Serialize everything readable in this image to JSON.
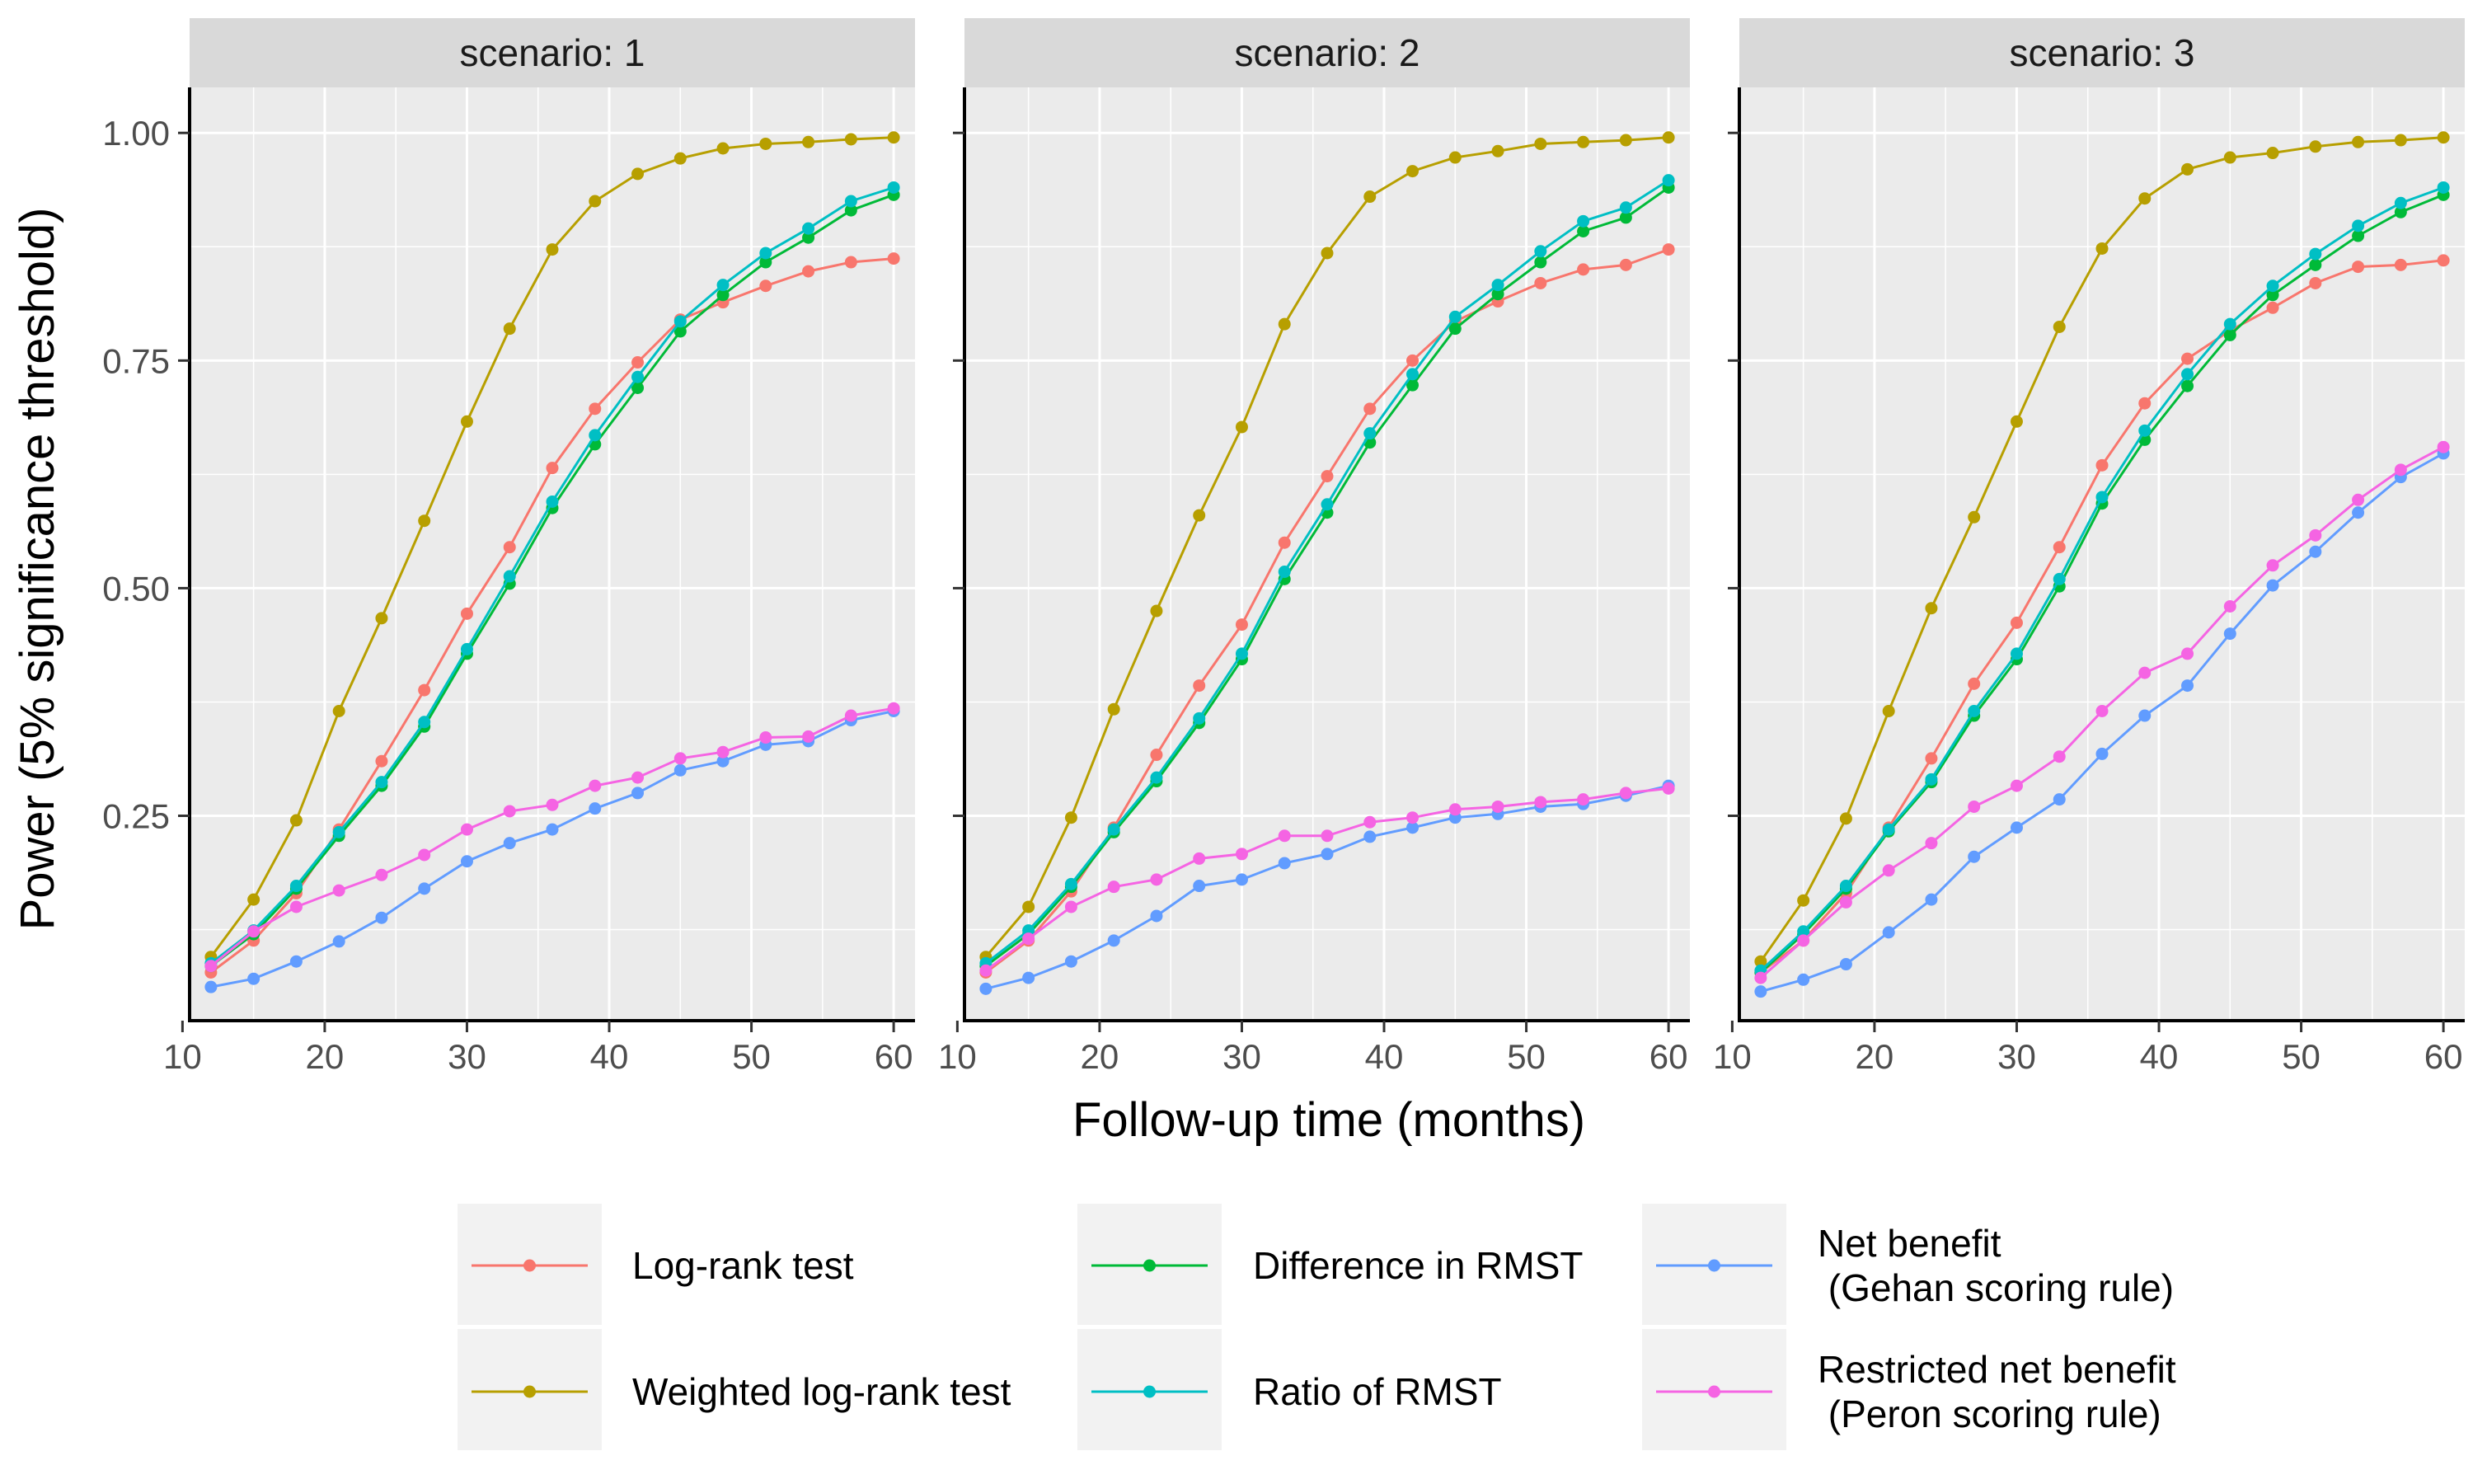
{
  "chart_data": {
    "type": "line",
    "xlabel": "Follow-up time (months)",
    "ylabel": "Power (5% significance threshold)",
    "xlim": [
      10.5,
      61.5
    ],
    "ylim": [
      0.025,
      1.05
    ],
    "x_ticks": [
      10,
      20,
      30,
      40,
      50,
      60
    ],
    "y_ticks": [
      0.25,
      0.5,
      0.75,
      1.0
    ],
    "y_tick_labels": [
      "0.25",
      "0.50",
      "0.75",
      "1.00"
    ],
    "x": [
      12,
      15,
      18,
      21,
      24,
      27,
      30,
      33,
      36,
      39,
      42,
      45,
      48,
      51,
      54,
      57,
      60
    ],
    "grid": true,
    "legend_position": "bottom",
    "series_styles": [
      {
        "name": "Log-rank test",
        "color": "#F8766D"
      },
      {
        "name": "Weighted log-rank test",
        "color": "#B79F00"
      },
      {
        "name": "Difference in RMST",
        "color": "#00BA38"
      },
      {
        "name": "Ratio of RMST",
        "color": "#00BFC4"
      },
      {
        "name": "Net benefit\n (Gehan scoring rule)",
        "color": "#619CFF"
      },
      {
        "name": "Restricted net benefit\n (Peron scoring rule)",
        "color": "#F564E3"
      }
    ],
    "panels": [
      {
        "strip": "scenario: 1",
        "series": [
          {
            "name": "Log-rank test",
            "values": [
              0.078,
              0.113,
              0.165,
              0.235,
              0.31,
              0.388,
              0.472,
              0.545,
              0.632,
              0.697,
              0.748,
              0.795,
              0.814,
              0.832,
              0.848,
              0.858,
              0.862
            ]
          },
          {
            "name": "Weighted log-rank test",
            "values": [
              0.095,
              0.158,
              0.245,
              0.365,
              0.467,
              0.574,
              0.683,
              0.785,
              0.872,
              0.925,
              0.955,
              0.972,
              0.983,
              0.988,
              0.99,
              0.993,
              0.995
            ]
          },
          {
            "name": "Difference in RMST",
            "values": [
              0.085,
              0.12,
              0.17,
              0.228,
              0.283,
              0.348,
              0.428,
              0.505,
              0.588,
              0.658,
              0.72,
              0.782,
              0.822,
              0.858,
              0.885,
              0.915,
              0.932
            ]
          },
          {
            "name": "Ratio of RMST",
            "values": [
              0.088,
              0.124,
              0.173,
              0.232,
              0.287,
              0.353,
              0.433,
              0.513,
              0.595,
              0.668,
              0.732,
              0.793,
              0.833,
              0.868,
              0.895,
              0.925,
              0.94
            ]
          },
          {
            "name": "Net benefit\n (Gehan scoring rule)",
            "values": [
              0.062,
              0.071,
              0.09,
              0.112,
              0.138,
              0.17,
              0.2,
              0.22,
              0.235,
              0.258,
              0.275,
              0.3,
              0.31,
              0.328,
              0.332,
              0.355,
              0.365
            ]
          },
          {
            "name": "Restricted net benefit\n (Peron scoring rule)",
            "values": [
              0.085,
              0.123,
              0.15,
              0.168,
              0.185,
              0.207,
              0.235,
              0.255,
              0.262,
              0.283,
              0.292,
              0.313,
              0.32,
              0.336,
              0.337,
              0.36,
              0.368
            ]
          }
        ]
      },
      {
        "strip": "scenario: 2",
        "series": [
          {
            "name": "Log-rank test",
            "values": [
              0.078,
              0.113,
              0.167,
              0.237,
              0.317,
              0.393,
              0.46,
              0.55,
              0.623,
              0.697,
              0.75,
              0.793,
              0.815,
              0.835,
              0.85,
              0.855,
              0.872
            ]
          },
          {
            "name": "Weighted log-rank test",
            "values": [
              0.095,
              0.15,
              0.248,
              0.367,
              0.475,
              0.58,
              0.677,
              0.79,
              0.868,
              0.93,
              0.958,
              0.973,
              0.98,
              0.988,
              0.99,
              0.992,
              0.995
            ]
          },
          {
            "name": "Difference in RMST",
            "values": [
              0.085,
              0.12,
              0.172,
              0.232,
              0.288,
              0.352,
              0.422,
              0.51,
              0.583,
              0.66,
              0.723,
              0.785,
              0.823,
              0.858,
              0.892,
              0.907,
              0.94
            ]
          },
          {
            "name": "Ratio of RMST",
            "values": [
              0.088,
              0.124,
              0.175,
              0.235,
              0.292,
              0.357,
              0.428,
              0.518,
              0.592,
              0.67,
              0.735,
              0.798,
              0.833,
              0.87,
              0.903,
              0.918,
              0.948
            ]
          },
          {
            "name": "Net benefit\n (Gehan scoring rule)",
            "values": [
              0.06,
              0.072,
              0.09,
              0.113,
              0.14,
              0.173,
              0.18,
              0.198,
              0.208,
              0.227,
              0.237,
              0.248,
              0.252,
              0.26,
              0.263,
              0.272,
              0.283
            ]
          },
          {
            "name": "Restricted net benefit\n (Peron scoring rule)",
            "values": [
              0.08,
              0.115,
              0.15,
              0.172,
              0.18,
              0.203,
              0.208,
              0.228,
              0.228,
              0.243,
              0.248,
              0.257,
              0.26,
              0.265,
              0.268,
              0.275,
              0.28
            ]
          }
        ]
      },
      {
        "strip": "scenario: 3",
        "series": [
          {
            "name": "Log-rank test",
            "values": [
              0.078,
              0.113,
              0.165,
              0.237,
              0.313,
              0.395,
              0.462,
              0.545,
              0.635,
              0.703,
              0.752,
              0.783,
              0.808,
              0.835,
              0.853,
              0.855,
              0.86
            ]
          },
          {
            "name": "Weighted log-rank test",
            "values": [
              0.09,
              0.157,
              0.247,
              0.365,
              0.478,
              0.578,
              0.683,
              0.787,
              0.873,
              0.928,
              0.96,
              0.973,
              0.978,
              0.985,
              0.99,
              0.992,
              0.995
            ]
          },
          {
            "name": "Difference in RMST",
            "values": [
              0.078,
              0.12,
              0.17,
              0.233,
              0.287,
              0.36,
              0.422,
              0.502,
              0.593,
              0.663,
              0.722,
              0.778,
              0.822,
              0.855,
              0.887,
              0.913,
              0.932
            ]
          },
          {
            "name": "Ratio of RMST",
            "values": [
              0.08,
              0.123,
              0.173,
              0.235,
              0.29,
              0.365,
              0.428,
              0.51,
              0.6,
              0.673,
              0.735,
              0.79,
              0.832,
              0.867,
              0.898,
              0.923,
              0.94
            ]
          },
          {
            "name": "Net benefit\n (Gehan scoring rule)",
            "values": [
              0.057,
              0.07,
              0.087,
              0.122,
              0.158,
              0.205,
              0.237,
              0.268,
              0.318,
              0.36,
              0.393,
              0.45,
              0.503,
              0.54,
              0.583,
              0.622,
              0.648
            ]
          },
          {
            "name": "Restricted net benefit\n (Peron scoring rule)",
            "values": [
              0.072,
              0.113,
              0.155,
              0.19,
              0.22,
              0.26,
              0.283,
              0.315,
              0.365,
              0.407,
              0.428,
              0.48,
              0.525,
              0.558,
              0.597,
              0.63,
              0.655
            ]
          }
        ]
      }
    ],
    "legend": {
      "columns": [
        {
          "items": [
            {
              "label_lines": [
                "Log-rank test"
              ],
              "color": "#F8766D"
            },
            {
              "label_lines": [
                "Weighted log-rank test"
              ],
              "color": "#B79F00"
            }
          ]
        },
        {
          "items": [
            {
              "label_lines": [
                "Difference in RMST"
              ],
              "color": "#00BA38"
            },
            {
              "label_lines": [
                "Ratio of RMST"
              ],
              "color": "#00BFC4"
            }
          ]
        },
        {
          "items": [
            {
              "label_lines": [
                "Net benefit",
                " (Gehan scoring rule)"
              ],
              "color": "#619CFF"
            },
            {
              "label_lines": [
                "Restricted net benefit",
                " (Peron scoring rule)"
              ],
              "color": "#F564E3"
            }
          ]
        }
      ]
    }
  }
}
